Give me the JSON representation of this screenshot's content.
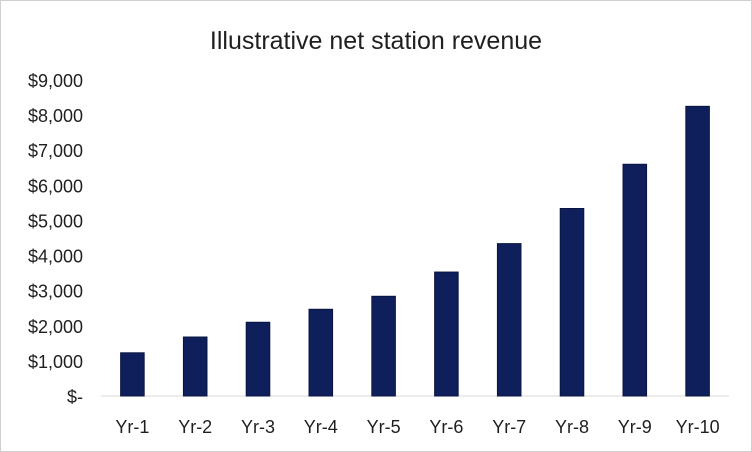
{
  "chart_data": {
    "type": "bar",
    "title": "Illustrative net station revenue",
    "xlabel": "",
    "ylabel": "",
    "categories": [
      "Yr-1",
      "Yr-2",
      "Yr-3",
      "Yr-4",
      "Yr-5",
      "Yr-6",
      "Yr-7",
      "Yr-8",
      "Yr-9",
      "Yr-10"
    ],
    "values": [
      1230,
      1680,
      2100,
      2470,
      2840,
      3530,
      4340,
      5340,
      6600,
      8250
    ],
    "ylim": [
      0,
      9000
    ],
    "y_ticks": [
      0,
      1000,
      2000,
      3000,
      4000,
      5000,
      6000,
      7000,
      8000,
      9000
    ],
    "y_tick_labels": [
      "$-",
      "$1,000",
      "$2,000",
      "$3,000",
      "$4,000",
      "$5,000",
      "$6,000",
      "$7,000",
      "$8,000",
      "$9,000"
    ],
    "grid": false,
    "legend": "none",
    "colors": {
      "bar_fill": "#0f1f5c",
      "bar_stroke": "#0a1440",
      "axis": "#d9d9d9"
    }
  }
}
